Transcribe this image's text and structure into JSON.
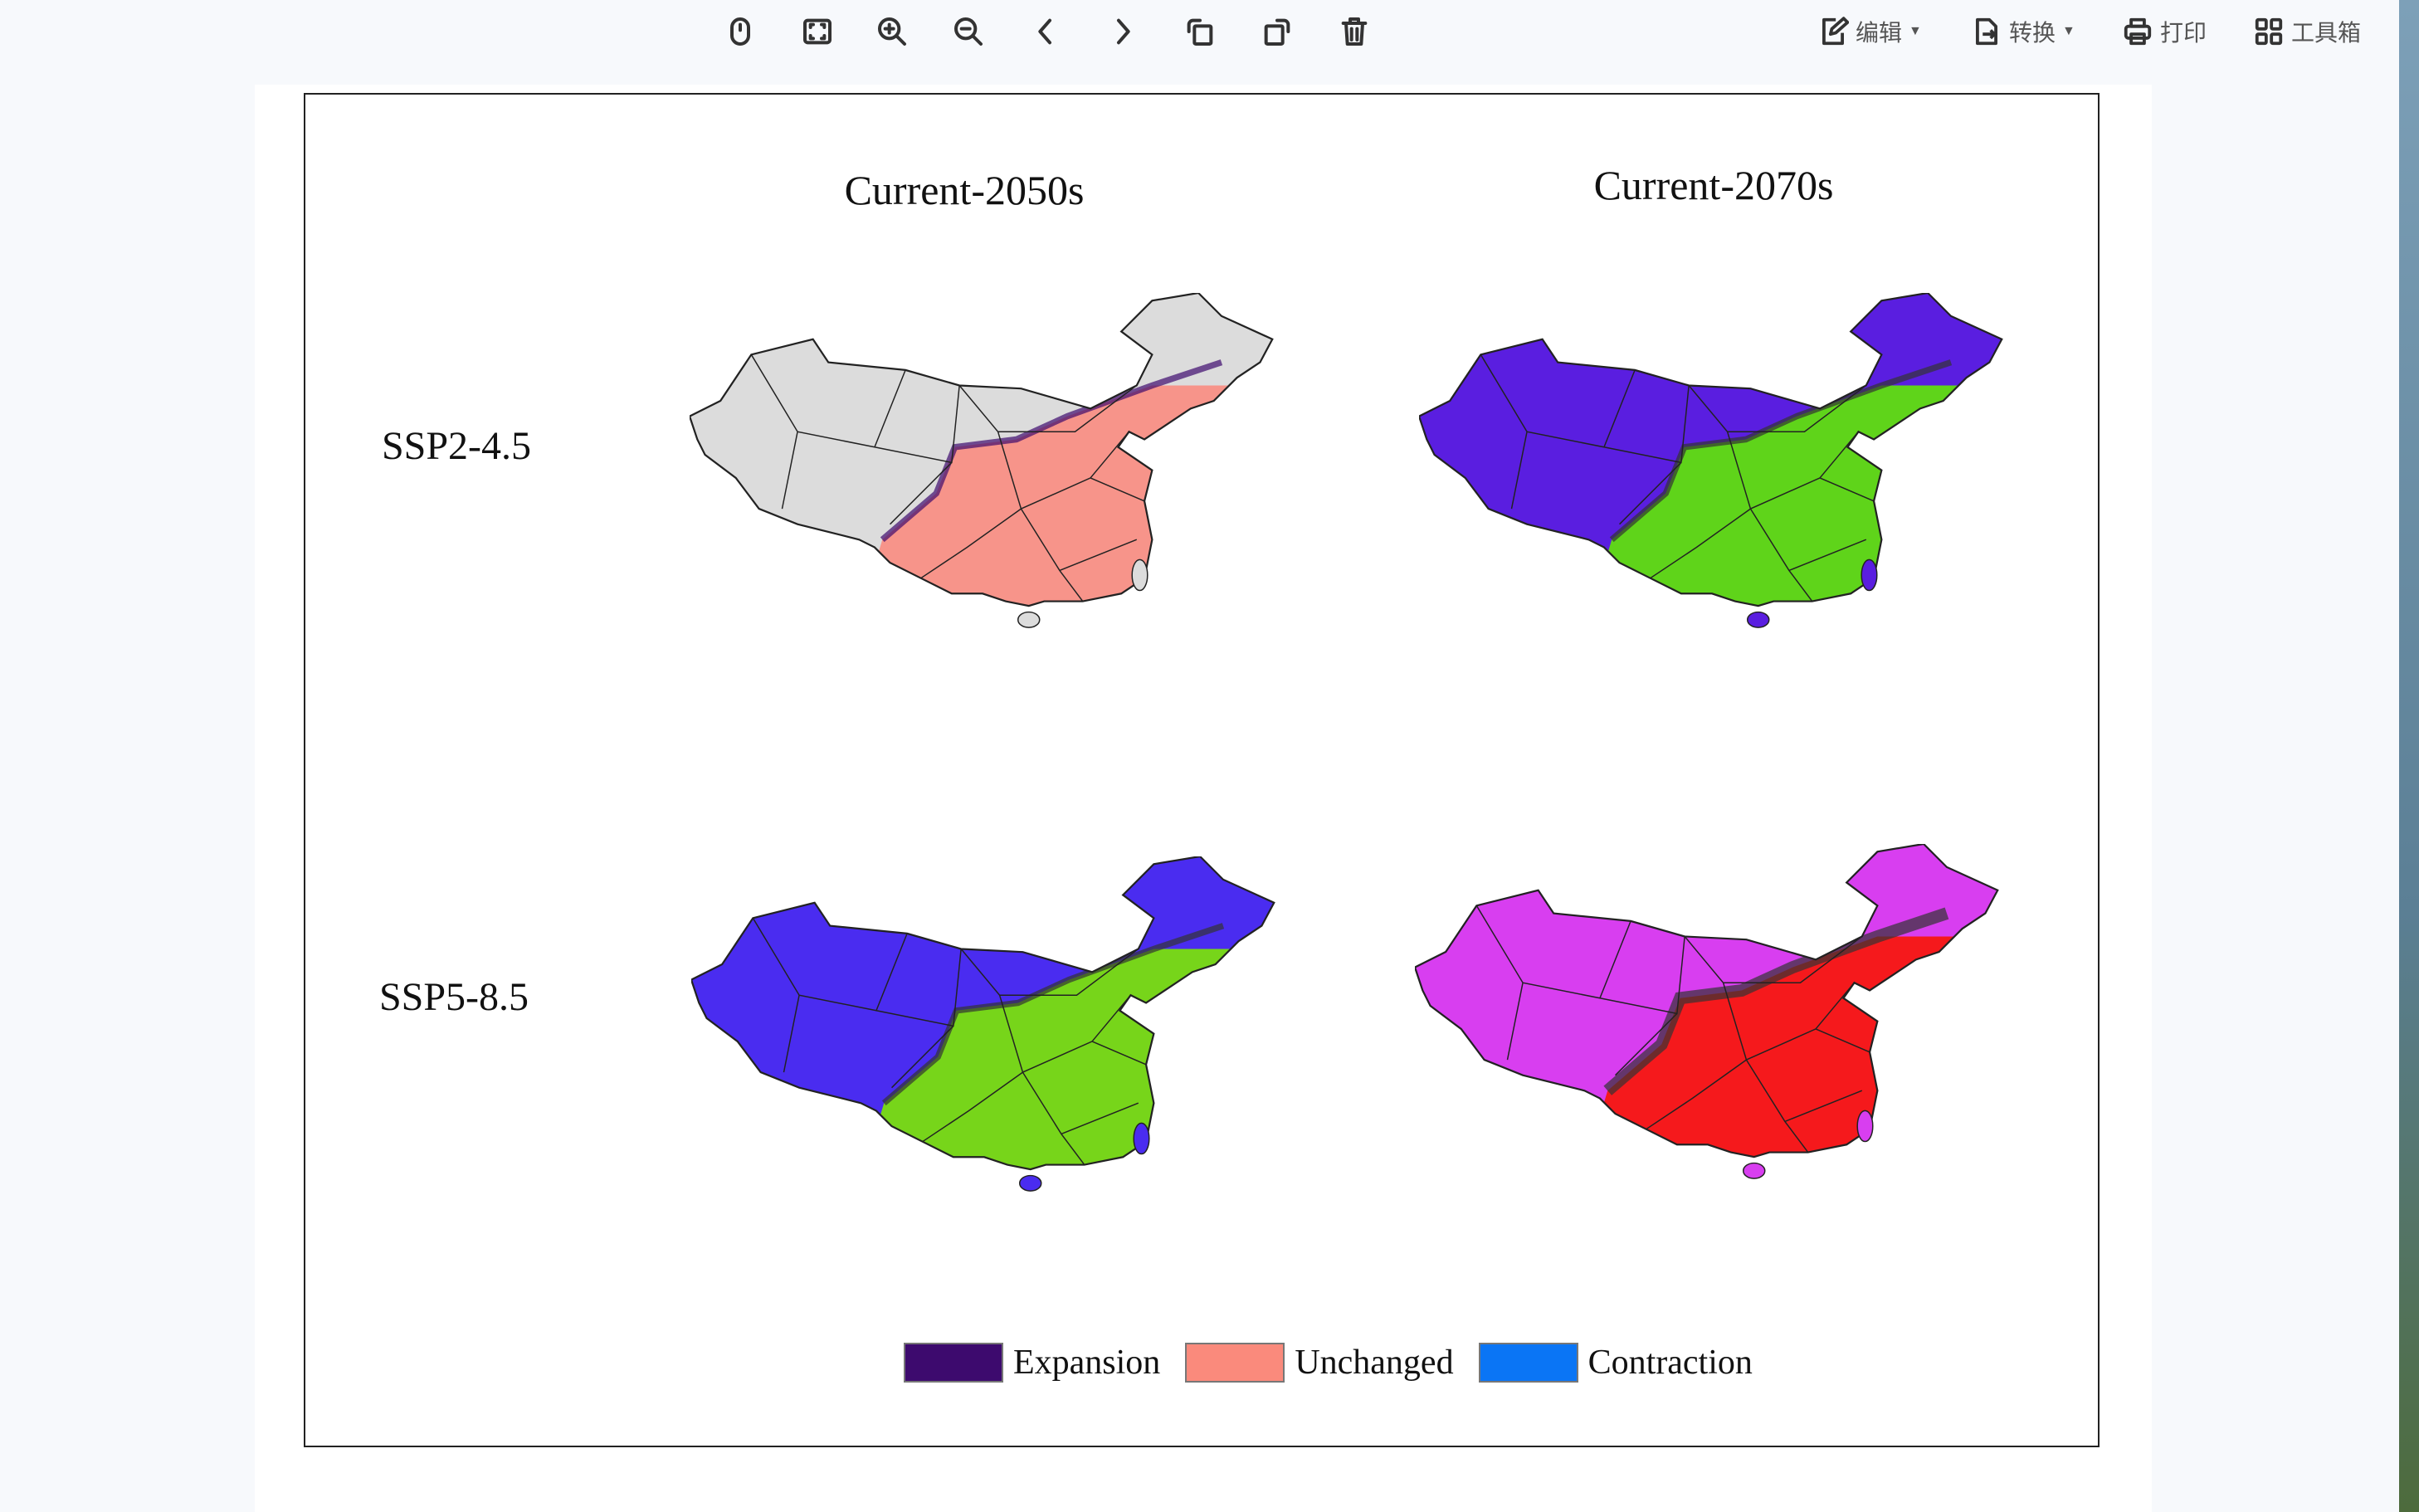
{
  "toolbar": {
    "icons": [
      "mouse-icon",
      "fit-page-icon",
      "zoom-in-icon",
      "zoom-out-icon",
      "previous-page-icon",
      "next-page-icon",
      "rotate-left-icon",
      "rotate-right-icon",
      "delete-icon"
    ],
    "edit_label": "编辑",
    "convert_label": "转换",
    "print_label": "打印",
    "toolbox_label": "工具箱"
  },
  "figure": {
    "columns": [
      "Current-2050s",
      "Current-2070s"
    ],
    "rows": [
      "SSP2-4.5",
      "SSP5-8.5"
    ],
    "panels": [
      {
        "scenario": "SSP2-4.5",
        "period": "Current-2050s",
        "outer_color": "#dcdcdc",
        "core_color": "#f7948a"
      },
      {
        "scenario": "SSP2-4.5",
        "period": "Current-2070s",
        "outer_color": "#5a1ee0",
        "core_color": "#5fd41a"
      },
      {
        "scenario": "SSP5-8.5",
        "period": "Current-2050s",
        "outer_color": "#4a2cf0",
        "core_color": "#77d51a"
      },
      {
        "scenario": "SSP5-8.5",
        "period": "Current-2070s",
        "outer_color": "#d83ef0",
        "core_color": "#f5191c"
      }
    ],
    "legend": [
      {
        "label": "Expansion",
        "color": "#3d0a6e"
      },
      {
        "label": "Unchanged",
        "color": "#fa8a7c"
      },
      {
        "label": "Contraction",
        "color": "#0a75f5"
      }
    ]
  }
}
